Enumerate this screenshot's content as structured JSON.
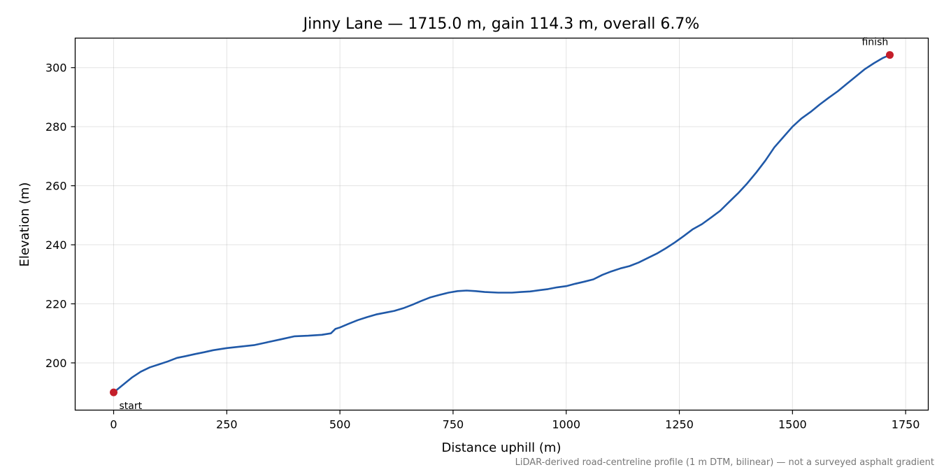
{
  "chart_data": {
    "type": "line",
    "title": "Jinny Lane — 1715.0 m, gain 114.3 m, overall 6.7%",
    "xlabel": "Distance uphill (m)",
    "ylabel": "Elevation (m)",
    "xlim": [
      -85,
      1800
    ],
    "ylim": [
      184,
      310
    ],
    "xticks": [
      0,
      250,
      500,
      750,
      1000,
      1250,
      1500,
      1750
    ],
    "yticks": [
      200,
      220,
      240,
      260,
      280,
      300
    ],
    "grid": true,
    "footnote": "LiDAR-derived road-centreline profile (1 m DTM, bilinear) — not a surveyed asphalt gradient",
    "series": [
      {
        "color": "#2059a8",
        "x": [
          0,
          20,
          40,
          60,
          80,
          100,
          120,
          140,
          160,
          180,
          200,
          220,
          250,
          280,
          310,
          340,
          370,
          400,
          430,
          460,
          480,
          490,
          500,
          520,
          540,
          560,
          580,
          600,
          620,
          640,
          660,
          680,
          700,
          720,
          740,
          760,
          780,
          800,
          820,
          850,
          880,
          900,
          920,
          940,
          960,
          980,
          1000,
          1020,
          1040,
          1060,
          1080,
          1100,
          1120,
          1140,
          1160,
          1180,
          1200,
          1220,
          1240,
          1260,
          1280,
          1300,
          1320,
          1340,
          1360,
          1380,
          1400,
          1420,
          1440,
          1460,
          1480,
          1500,
          1520,
          1540,
          1560,
          1580,
          1600,
          1620,
          1640,
          1660,
          1680,
          1700,
          1715
        ],
        "y": [
          190.0,
          192.5,
          195.0,
          197.0,
          198.5,
          199.5,
          200.5,
          201.7,
          202.3,
          203.0,
          203.6,
          204.3,
          205.0,
          205.5,
          206.0,
          207.0,
          208.0,
          209.0,
          209.2,
          209.5,
          210.0,
          211.5,
          212.0,
          213.3,
          214.5,
          215.5,
          216.4,
          217.0,
          217.6,
          218.5,
          219.7,
          221.0,
          222.2,
          223.0,
          223.8,
          224.3,
          224.5,
          224.3,
          224.0,
          223.8,
          223.8,
          224.0,
          224.2,
          224.6,
          225.0,
          225.6,
          226.0,
          226.8,
          227.5,
          228.3,
          229.8,
          231.0,
          232.0,
          232.8,
          234.0,
          235.5,
          237.0,
          238.8,
          240.8,
          243.0,
          245.3,
          247.0,
          249.2,
          251.5,
          254.5,
          257.5,
          260.8,
          264.5,
          268.5,
          273.0,
          276.5,
          280.0,
          282.8,
          285.0,
          287.5,
          289.8,
          292.0,
          294.5,
          297.0,
          299.5,
          301.5,
          303.3,
          304.3
        ]
      }
    ],
    "markers": [
      {
        "label": "start",
        "x": 0,
        "y": 190.0,
        "color": "#c41e2a"
      },
      {
        "label": "finish",
        "x": 1715,
        "y": 304.3,
        "color": "#c41e2a"
      }
    ]
  }
}
